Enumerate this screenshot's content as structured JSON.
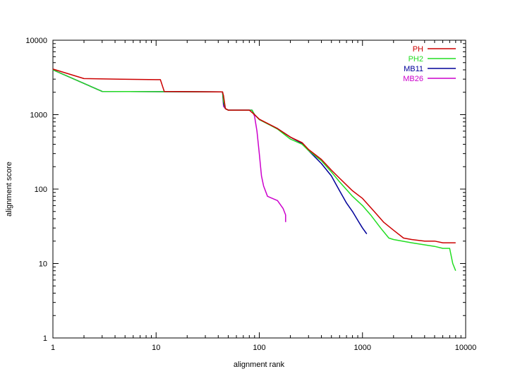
{
  "chart_data": {
    "type": "line",
    "xlabel": "alignment rank",
    "ylabel": "alignment score",
    "xscale": "log",
    "yscale": "log",
    "xlim": [
      1,
      10000
    ],
    "ylim": [
      1,
      10000
    ],
    "grid": false,
    "legend_position": "top-right",
    "x_ticks": [
      {
        "value": 1,
        "label": "1"
      },
      {
        "value": 10,
        "label": "10"
      },
      {
        "value": 100,
        "label": "100"
      },
      {
        "value": 1000,
        "label": "1000"
      },
      {
        "value": 10000,
        "label": "10000"
      }
    ],
    "y_ticks": [
      {
        "value": 1,
        "label": "1"
      },
      {
        "value": 10,
        "label": "10"
      },
      {
        "value": 100,
        "label": "100"
      },
      {
        "value": 1000,
        "label": "1000"
      },
      {
        "value": 10000,
        "label": "10000"
      }
    ],
    "series": [
      {
        "name": "PH",
        "color": "#cc0000",
        "points": [
          [
            1,
            4100
          ],
          [
            2,
            3050
          ],
          [
            4.5,
            3000
          ],
          [
            10,
            2950
          ],
          [
            11,
            2950
          ],
          [
            12,
            2050
          ],
          [
            30,
            2030
          ],
          [
            44,
            2020
          ],
          [
            45,
            1800
          ],
          [
            47,
            1200
          ],
          [
            50,
            1150
          ],
          [
            80,
            1150
          ],
          [
            90,
            1000
          ],
          [
            100,
            870
          ],
          [
            150,
            650
          ],
          [
            200,
            500
          ],
          [
            260,
            420
          ],
          [
            300,
            340
          ],
          [
            400,
            250
          ],
          [
            500,
            180
          ],
          [
            600,
            140
          ],
          [
            800,
            95
          ],
          [
            1000,
            75
          ],
          [
            1300,
            50
          ],
          [
            1600,
            36
          ],
          [
            2000,
            28
          ],
          [
            2500,
            22
          ],
          [
            3000,
            21
          ],
          [
            4000,
            20
          ],
          [
            5000,
            20
          ],
          [
            6000,
            19
          ],
          [
            8000,
            19
          ]
        ]
      },
      {
        "name": "PH2",
        "color": "#22dd22",
        "points": [
          [
            1,
            4000
          ],
          [
            3,
            2050
          ],
          [
            30,
            2030
          ],
          [
            44,
            2020
          ],
          [
            45,
            1500
          ],
          [
            47,
            1200
          ],
          [
            50,
            1150
          ],
          [
            85,
            1150
          ],
          [
            90,
            1000
          ],
          [
            100,
            860
          ],
          [
            150,
            640
          ],
          [
            200,
            470
          ],
          [
            260,
            400
          ],
          [
            300,
            330
          ],
          [
            400,
            240
          ],
          [
            500,
            170
          ],
          [
            600,
            125
          ],
          [
            800,
            80
          ],
          [
            1000,
            60
          ],
          [
            1200,
            45
          ],
          [
            1500,
            30
          ],
          [
            1800,
            22
          ],
          [
            2000,
            21
          ],
          [
            3000,
            19
          ],
          [
            5000,
            17
          ],
          [
            6000,
            16
          ],
          [
            7000,
            16
          ],
          [
            7500,
            10
          ],
          [
            8000,
            8
          ]
        ]
      },
      {
        "name": "MB11",
        "color": "#000099",
        "points": [
          [
            1,
            4000
          ],
          [
            3,
            2050
          ],
          [
            30,
            2030
          ],
          [
            44,
            2020
          ],
          [
            45,
            1400
          ],
          [
            47,
            1200
          ],
          [
            50,
            1150
          ],
          [
            85,
            1150
          ],
          [
            90,
            1000
          ],
          [
            100,
            860
          ],
          [
            150,
            650
          ],
          [
            200,
            500
          ],
          [
            260,
            410
          ],
          [
            300,
            330
          ],
          [
            400,
            220
          ],
          [
            500,
            150
          ],
          [
            600,
            95
          ],
          [
            700,
            65
          ],
          [
            800,
            50
          ],
          [
            900,
            38
          ],
          [
            1000,
            30
          ],
          [
            1100,
            25
          ]
        ]
      },
      {
        "name": "MB26",
        "color": "#cc00cc",
        "points": [
          [
            1,
            4000
          ],
          [
            3,
            2050
          ],
          [
            30,
            2030
          ],
          [
            44,
            2020
          ],
          [
            45,
            1300
          ],
          [
            47,
            1200
          ],
          [
            50,
            1150
          ],
          [
            85,
            1150
          ],
          [
            90,
            950
          ],
          [
            95,
            600
          ],
          [
            100,
            300
          ],
          [
            105,
            150
          ],
          [
            110,
            110
          ],
          [
            120,
            80
          ],
          [
            150,
            70
          ],
          [
            170,
            55
          ],
          [
            180,
            45
          ],
          [
            180,
            36
          ]
        ]
      }
    ]
  }
}
